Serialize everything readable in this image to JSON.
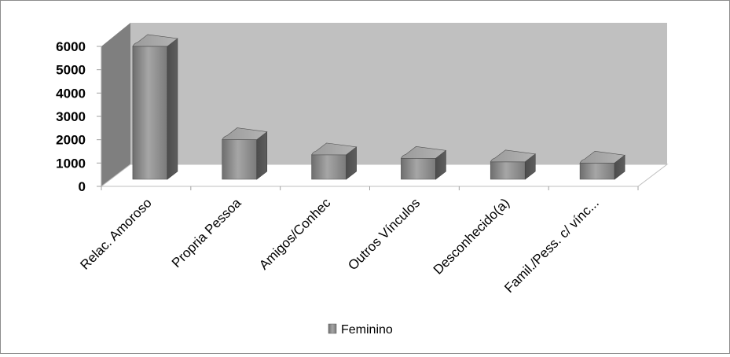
{
  "chart_data": {
    "type": "bar",
    "three_d": true,
    "categories": [
      "Relac. Amoroso",
      "Propria Pessoa",
      "Amigos/Conhec",
      "Outros Vínculos",
      "Desconhecido(a)",
      "Famil./Pess. c/ vínc..."
    ],
    "series": [
      {
        "name": "Feminino",
        "values": [
          5800,
          1800,
          1150,
          1000,
          850,
          800
        ]
      }
    ],
    "yticks": [
      "0",
      "1000",
      "2000",
      "3000",
      "4000",
      "5000",
      "6000"
    ],
    "ylim": [
      0,
      6000
    ],
    "xlabel": "",
    "ylabel": "",
    "legend_position": "bottom",
    "grid": false,
    "colors": {
      "bar": "#8a8a8a",
      "back_wall": "#c0c0c0",
      "side_wall": "#7f7f7f",
      "floor": "#ffffff"
    }
  }
}
